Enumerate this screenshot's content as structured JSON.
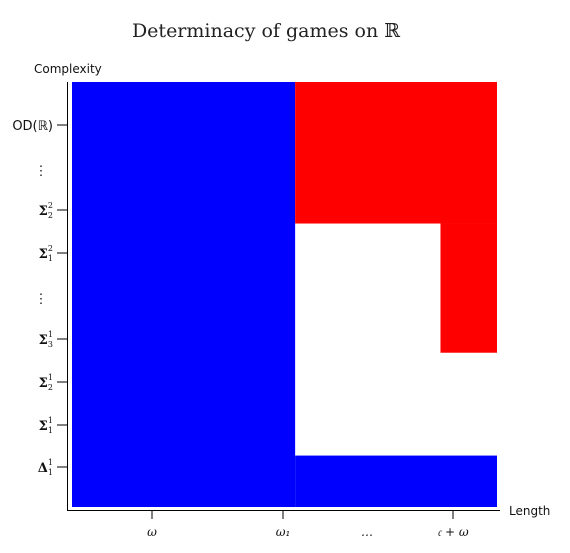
{
  "chart_data": {
    "type": "heatmap",
    "title": "Determinacy of games on ℝ",
    "xlabel": "Length",
    "ylabel": "Complexity",
    "x_ticks": [
      "ω",
      "ω₁",
      "…",
      "𝔠 + ω"
    ],
    "y_ticks": [
      {
        "base": "Δ",
        "sub": "1",
        "sup": "1"
      },
      {
        "base": "Σ",
        "sub": "1",
        "sup": "1"
      },
      {
        "base": "Σ",
        "sub": "2",
        "sup": "1"
      },
      {
        "base": "Σ",
        "sub": "3",
        "sup": "1"
      },
      {
        "base": "⋮",
        "sub": "",
        "sup": ""
      },
      {
        "base": "Σ",
        "sub": "1",
        "sup": "2"
      },
      {
        "base": "Σ",
        "sub": "2",
        "sup": "2"
      },
      {
        "base": "⋮",
        "sub": "",
        "sup": ""
      },
      {
        "base": "OD(ℝ)",
        "sub": "",
        "sup": ""
      }
    ],
    "regions": [
      {
        "color": "#0000ff",
        "x": [
          0,
          0.525
        ],
        "y": [
          0,
          1
        ]
      },
      {
        "color": "#0000ff",
        "x": [
          0.525,
          1
        ],
        "y": [
          0,
          0.121
        ]
      },
      {
        "color": "#ff0000",
        "x": [
          0.525,
          1
        ],
        "y": [
          0.667,
          1
        ]
      },
      {
        "color": "#ff0000",
        "x": [
          0.867,
          1
        ],
        "y": [
          0.363,
          0.667
        ]
      }
    ]
  }
}
